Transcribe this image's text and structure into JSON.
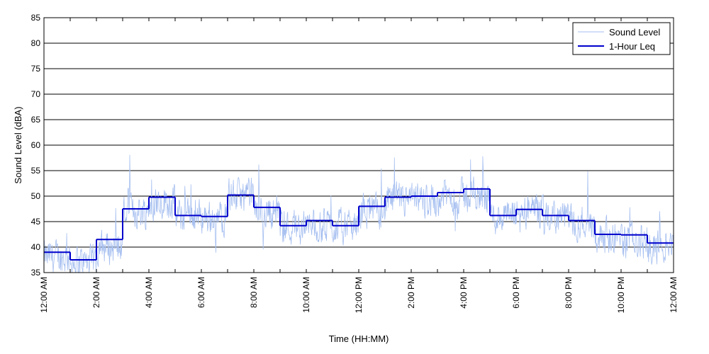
{
  "chart_data": {
    "type": "line",
    "title": "",
    "xlabel": "Time (HH:MM)",
    "ylabel": "Sound Level (dBA)",
    "ylim": [
      35,
      85
    ],
    "yticks": [
      35,
      40,
      45,
      50,
      55,
      60,
      65,
      70,
      75,
      80,
      85
    ],
    "xlim_hours": [
      0,
      24
    ],
    "xtick_labels": [
      "12:00 AM",
      "2:00 AM",
      "4:00 AM",
      "6:00 AM",
      "8:00 AM",
      "10:00 AM",
      "12:00 PM",
      "2:00 PM",
      "4:00 PM",
      "6:00 PM",
      "8:00 PM",
      "10:00 PM",
      "12:00 AM"
    ],
    "grid": "horizontal",
    "legend_position": "top-right",
    "series": [
      {
        "name": "Sound Level",
        "color": "#a6bff0",
        "style": "thin-noisy-line",
        "hourly_typical": [
          38,
          37,
          40,
          47,
          49,
          46,
          46,
          50,
          47,
          44,
          44,
          44,
          47,
          49,
          49,
          50,
          50,
          46,
          47,
          46,
          45,
          42,
          41,
          40
        ]
      },
      {
        "name": "1-Hour Leq",
        "color": "#0000cc",
        "style": "step",
        "x_hours": [
          0,
          1,
          2,
          3,
          4,
          5,
          6,
          7,
          8,
          9,
          10,
          11,
          12,
          13,
          14,
          15,
          16,
          17,
          18,
          19,
          20,
          21,
          22,
          23
        ],
        "values": [
          39,
          37.5,
          41.5,
          47.5,
          49.8,
          46.2,
          46,
          50.2,
          47.8,
          44.2,
          45.2,
          44.2,
          48,
          49.8,
          50,
          50.7,
          51.4,
          46.2,
          47.4,
          46.2,
          45.2,
          42.5,
          42.4,
          40.8
        ]
      }
    ]
  }
}
